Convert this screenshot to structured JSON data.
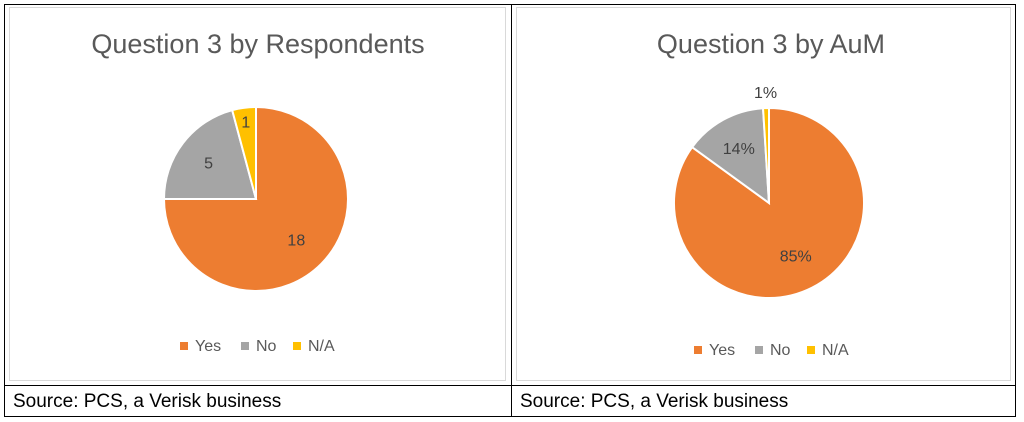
{
  "colors": {
    "Yes": "#ED7D31",
    "No": "#A5A5A5",
    "N/A": "#FFC000"
  },
  "chart_data": [
    {
      "type": "pie",
      "title": "Question 3 by Respondents",
      "categories": [
        "Yes",
        "No",
        "N/A"
      ],
      "values": [
        18,
        5,
        1
      ],
      "data_labels": [
        "18",
        "5",
        "1"
      ],
      "legend": "bottom"
    },
    {
      "type": "pie",
      "title": "Question 3 by AuM",
      "categories": [
        "Yes",
        "No",
        "N/A"
      ],
      "values": [
        85,
        14,
        1
      ],
      "data_labels": [
        "85%",
        "14%",
        "1%"
      ],
      "legend": "bottom"
    }
  ],
  "sources": [
    "Source: PCS, a Verisk business",
    "Source: PCS, a Verisk business"
  ]
}
